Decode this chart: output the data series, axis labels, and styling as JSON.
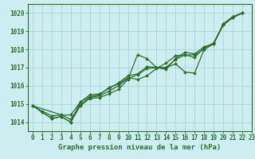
{
  "title": "Graphe pression niveau de la mer (hPa)",
  "bg_color": "#cceef0",
  "grid_color": "#aad4d8",
  "line_color": "#2d6e2d",
  "xlim": [
    -0.5,
    23
  ],
  "ylim": [
    1013.5,
    1020.5
  ],
  "yticks": [
    1014,
    1015,
    1016,
    1017,
    1018,
    1019,
    1020
  ],
  "xticks": [
    0,
    1,
    2,
    3,
    4,
    5,
    6,
    7,
    8,
    9,
    10,
    11,
    12,
    13,
    14,
    15,
    16,
    17,
    18,
    19,
    20,
    21,
    22,
    23
  ],
  "series": [
    [
      0,
      1014.9
    ],
    [
      1,
      1014.55
    ],
    [
      2,
      1014.2
    ],
    [
      3,
      1014.3
    ],
    [
      4,
      1014.0
    ],
    [
      5,
      1014.9
    ],
    [
      6,
      1015.3
    ],
    [
      7,
      1015.35
    ],
    [
      8,
      1015.55
    ],
    [
      9,
      1015.8
    ],
    [
      10,
      1016.35
    ],
    [
      11,
      1017.7
    ],
    [
      12,
      1017.5
    ],
    [
      13,
      1017.0
    ],
    [
      14,
      1017.0
    ],
    [
      15,
      1017.2
    ],
    [
      16,
      1016.75
    ],
    [
      17,
      1016.7
    ],
    [
      18,
      1018.0
    ],
    [
      19,
      1018.3
    ],
    [
      20,
      1019.35
    ],
    [
      21,
      1019.75
    ],
    [
      22,
      1020.0
    ]
  ],
  "series2": [
    [
      0,
      1014.9
    ],
    [
      1,
      1014.55
    ],
    [
      2,
      1014.2
    ],
    [
      3,
      1014.3
    ],
    [
      4,
      1014.0
    ],
    [
      5,
      1015.1
    ],
    [
      6,
      1015.4
    ],
    [
      7,
      1015.5
    ],
    [
      8,
      1015.9
    ],
    [
      9,
      1016.1
    ],
    [
      10,
      1016.45
    ],
    [
      11,
      1016.35
    ],
    [
      12,
      1016.55
    ],
    [
      13,
      1016.95
    ],
    [
      14,
      1017.25
    ],
    [
      15,
      1017.65
    ],
    [
      16,
      1017.7
    ],
    [
      17,
      1017.7
    ],
    [
      18,
      1018.0
    ],
    [
      19,
      1018.35
    ],
    [
      20,
      1019.35
    ],
    [
      21,
      1019.75
    ],
    [
      22,
      1020.0
    ]
  ],
  "series3": [
    [
      0,
      1014.9
    ],
    [
      3,
      1014.4
    ],
    [
      4,
      1014.15
    ],
    [
      5,
      1014.95
    ],
    [
      6,
      1015.35
    ],
    [
      7,
      1015.45
    ],
    [
      8,
      1015.7
    ],
    [
      9,
      1016.0
    ],
    [
      10,
      1016.4
    ],
    [
      11,
      1016.6
    ],
    [
      12,
      1016.95
    ],
    [
      13,
      1017.0
    ],
    [
      14,
      1016.9
    ],
    [
      15,
      1017.5
    ],
    [
      16,
      1017.85
    ],
    [
      17,
      1017.75
    ],
    [
      18,
      1018.15
    ],
    [
      19,
      1018.3
    ],
    [
      20,
      1019.4
    ],
    [
      21,
      1019.8
    ],
    [
      22,
      1020.0
    ]
  ],
  "series4": [
    [
      0,
      1014.9
    ],
    [
      1,
      1014.6
    ],
    [
      2,
      1014.35
    ],
    [
      4,
      1014.4
    ],
    [
      5,
      1015.1
    ],
    [
      6,
      1015.5
    ],
    [
      7,
      1015.55
    ],
    [
      8,
      1015.85
    ],
    [
      9,
      1016.15
    ],
    [
      10,
      1016.55
    ],
    [
      11,
      1016.65
    ],
    [
      12,
      1017.05
    ],
    [
      13,
      1017.0
    ],
    [
      14,
      1017.0
    ],
    [
      15,
      1017.45
    ],
    [
      16,
      1017.7
    ],
    [
      17,
      1017.55
    ],
    [
      18,
      1018.1
    ],
    [
      19,
      1018.35
    ],
    [
      20,
      1019.4
    ],
    [
      21,
      1019.8
    ],
    [
      22,
      1020.0
    ]
  ]
}
